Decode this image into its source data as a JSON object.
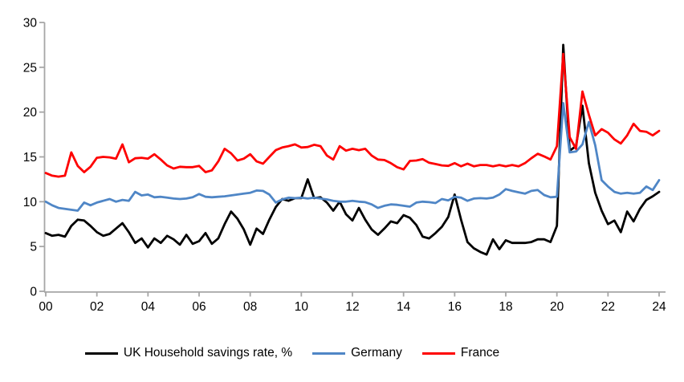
{
  "chart_data": {
    "type": "line",
    "title": "",
    "x_unit": "quarterly",
    "x_start_year": 2000,
    "x_end_year": 2024,
    "xlabel": "",
    "ylabel": "",
    "ylim": [
      0,
      30
    ],
    "y_ticks": [
      0,
      5,
      10,
      15,
      20,
      25,
      30
    ],
    "x_tick_labels": [
      "00",
      "02",
      "04",
      "06",
      "08",
      "10",
      "12",
      "14",
      "16",
      "18",
      "20",
      "22",
      "24"
    ],
    "grid": "off",
    "legend_position": "bottom",
    "axis_color": "#A6A6A6",
    "text_color": "#000000",
    "series": [
      {
        "key": "uk",
        "name": "UK Household savings rate, %",
        "color": "#000000",
        "values": [
          6.5,
          6.2,
          6.3,
          6.1,
          7.3,
          8.0,
          7.9,
          7.3,
          6.6,
          6.2,
          6.4,
          7.0,
          7.6,
          6.6,
          5.4,
          5.9,
          4.9,
          5.9,
          5.4,
          6.2,
          5.8,
          5.2,
          6.3,
          5.3,
          5.6,
          6.5,
          5.3,
          5.9,
          7.5,
          8.9,
          8.1,
          6.9,
          5.2,
          7.0,
          6.4,
          8.0,
          9.4,
          10.3,
          10.1,
          10.4,
          10.4,
          12.5,
          10.4,
          10.5,
          9.9,
          9.0,
          10.0,
          8.6,
          7.9,
          9.3,
          8.0,
          6.9,
          6.3,
          7.0,
          7.8,
          7.6,
          8.5,
          8.2,
          7.4,
          6.1,
          5.9,
          6.5,
          7.2,
          8.3,
          10.8,
          8.0,
          5.5,
          4.8,
          4.4,
          4.1,
          5.8,
          4.7,
          5.7,
          5.4,
          5.4,
          5.4,
          5.5,
          5.8,
          5.8,
          5.5,
          7.3,
          27.5,
          15.7,
          16.2,
          20.7,
          14.3,
          11.0,
          9.0,
          7.5,
          7.9,
          6.6,
          8.9,
          7.8,
          9.2,
          10.2,
          10.6,
          11.1
        ]
      },
      {
        "key": "germany",
        "name": "Germany",
        "color": "#4F86C6",
        "values": [
          10.0,
          9.6,
          9.3,
          9.2,
          9.1,
          9.0,
          9.9,
          9.6,
          9.9,
          10.1,
          10.3,
          10.0,
          10.2,
          10.1,
          11.1,
          10.7,
          10.8,
          10.5,
          10.55,
          10.45,
          10.35,
          10.3,
          10.35,
          10.5,
          10.85,
          10.55,
          10.5,
          10.55,
          10.6,
          10.7,
          10.8,
          10.9,
          11.0,
          11.25,
          11.2,
          10.8,
          9.9,
          10.25,
          10.45,
          10.4,
          10.45,
          10.35,
          10.45,
          10.35,
          10.25,
          10.1,
          10.0,
          10.0,
          10.1,
          10.0,
          9.95,
          9.7,
          9.3,
          9.55,
          9.7,
          9.65,
          9.55,
          9.45,
          9.9,
          10.0,
          9.95,
          9.85,
          10.3,
          10.15,
          10.55,
          10.45,
          10.1,
          10.35,
          10.4,
          10.35,
          10.45,
          10.8,
          11.4,
          11.2,
          11.05,
          10.9,
          11.2,
          11.3,
          10.75,
          10.5,
          10.55,
          21.0,
          15.5,
          15.6,
          16.4,
          18.9,
          16.3,
          12.4,
          11.7,
          11.1,
          10.9,
          11.0,
          10.9,
          11.0,
          11.7,
          11.3,
          12.4
        ]
      },
      {
        "key": "france",
        "name": "France",
        "color": "#FE0000",
        "values": [
          13.2,
          12.9,
          12.8,
          12.9,
          15.5,
          14.0,
          13.3,
          13.9,
          14.9,
          15.0,
          14.95,
          14.8,
          16.4,
          14.4,
          14.85,
          14.9,
          14.8,
          15.3,
          14.7,
          14.05,
          13.7,
          13.9,
          13.85,
          13.85,
          14.0,
          13.3,
          13.5,
          14.5,
          15.9,
          15.4,
          14.6,
          14.8,
          15.3,
          14.5,
          14.25,
          15.0,
          15.75,
          16.05,
          16.2,
          16.4,
          16.05,
          16.1,
          16.35,
          16.2,
          15.15,
          14.7,
          16.2,
          15.7,
          15.9,
          15.75,
          15.9,
          15.15,
          14.7,
          14.65,
          14.3,
          13.85,
          13.6,
          14.55,
          14.6,
          14.75,
          14.35,
          14.2,
          14.05,
          14.0,
          14.3,
          13.95,
          14.25,
          13.95,
          14.1,
          14.1,
          13.95,
          14.1,
          13.95,
          14.1,
          13.95,
          14.3,
          14.85,
          15.35,
          15.05,
          14.7,
          16.2,
          26.5,
          17.2,
          15.9,
          22.3,
          19.7,
          17.4,
          18.1,
          17.7,
          16.95,
          16.5,
          17.4,
          18.7,
          17.9,
          17.8,
          17.4,
          17.9
        ]
      }
    ]
  }
}
